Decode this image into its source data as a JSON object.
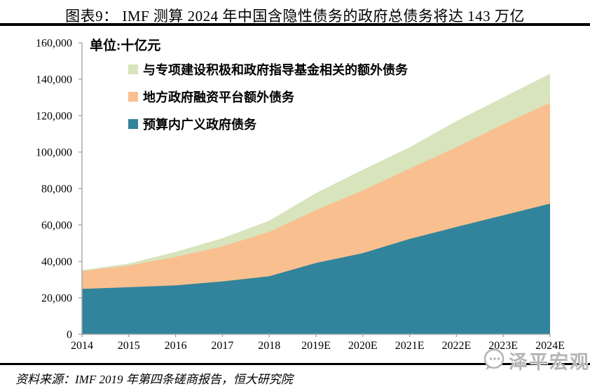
{
  "header": {
    "title": "图表9：  IMF 测算 2024 年中国含隐性债务的政府总债务将达 143 万亿"
  },
  "chart_data": {
    "type": "area",
    "stacked": true,
    "unit_label": "单位:十亿元",
    "categories": [
      "2014",
      "2015",
      "2016",
      "2017",
      "2018",
      "2019E",
      "2020E",
      "2021E",
      "2022E",
      "2023E",
      "2024E"
    ],
    "series": [
      {
        "name": "预算内广义政府债务",
        "color": "#31849B",
        "values": [
          24900,
          25800,
          26800,
          29000,
          31800,
          39100,
          44500,
          52300,
          58900,
          65300,
          71700
        ]
      },
      {
        "name": "地方政府融资平台额外债务",
        "color": "#FABF8F",
        "values": [
          9800,
          11900,
          15600,
          19200,
          24400,
          29000,
          34500,
          38600,
          43700,
          50000,
          55300
        ]
      },
      {
        "name": "与专项建设积极和政府指导基金相关的额外债务",
        "color": "#D7E4BC",
        "values": [
          500,
          1100,
          2800,
          4500,
          6100,
          9400,
          11300,
          11700,
          14400,
          14700,
          16000
        ]
      }
    ],
    "totals": [
      35200,
      38800,
      45200,
      52700,
      62300,
      77500,
      90300,
      102600,
      117000,
      130000,
      143000
    ],
    "ylim": [
      0,
      160000
    ],
    "ytick_step": 20000,
    "y_tick_labels": [
      "0",
      "20,000",
      "40,000",
      "60,000",
      "80,000",
      "100,000",
      "120,000",
      "140,000",
      "160,000"
    ],
    "grid": false,
    "legend_position": "inside-top-left",
    "axis_color": "#A6A6A6"
  },
  "footer": {
    "source": "资料来源：IMF 2019 年第四条磋商报告，恒大研究院"
  },
  "watermark": {
    "text": "泽平宏观",
    "icon": "speech-bubble-face-icon"
  }
}
